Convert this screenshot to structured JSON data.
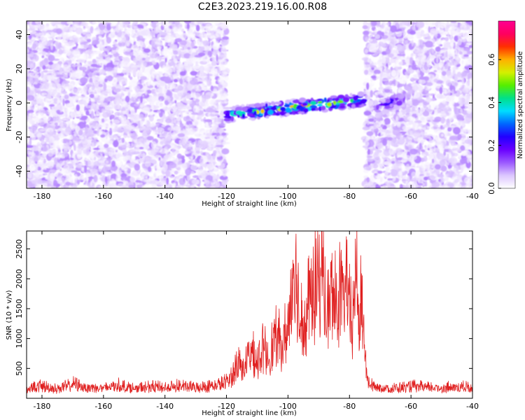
{
  "title": "C2E3.2023.219.16.00.R08",
  "chart_data": [
    {
      "type": "heatmap",
      "xlabel": "Height of straight line (km)",
      "ylabel": "Frequency (Hz)",
      "xlim": [
        -185,
        -40
      ],
      "ylim": [
        -50,
        48
      ],
      "xticks": [
        -180,
        -160,
        -140,
        -120,
        -100,
        -80,
        -60,
        -40
      ],
      "yticks": [
        -40,
        -20,
        0,
        20,
        40
      ],
      "colorbar": {
        "label": "Normalized spectral amplitude",
        "range": [
          0,
          0.78
        ],
        "ticks": [
          0.0,
          0.2,
          0.4,
          0.6
        ],
        "colors": [
          "#ffffff",
          "#dcc6ff",
          "#9b59ff",
          "#6a00ff",
          "#2200ff",
          "#0066ff",
          "#00ddff",
          "#00e08a",
          "#55ee00",
          "#d4f000",
          "#ffb000",
          "#ff3000",
          "#ff0060",
          "#ff0090"
        ]
      },
      "regions": [
        {
          "x": [
            -185,
            -120
          ],
          "y": [
            -50,
            48
          ],
          "amplitude": [
            0.0,
            0.1
          ],
          "description": "noise"
        },
        {
          "x": [
            -75,
            -40
          ],
          "y": [
            -50,
            48
          ],
          "amplitude": [
            0.0,
            0.1
          ],
          "description": "noise"
        },
        {
          "x": [
            -120,
            -75
          ],
          "y_center": [
            -7,
            2
          ],
          "y_halfwidth": 4,
          "amplitude": [
            0.05,
            0.78
          ],
          "description": "signal band"
        },
        {
          "x": [
            -71,
            -62
          ],
          "y_center": [
            -3,
            3
          ],
          "y_halfwidth": 4,
          "amplitude": [
            0.05,
            0.3
          ],
          "description": "weak echo"
        }
      ],
      "grid": false
    },
    {
      "type": "line",
      "xlabel": "Height of straight line (km)",
      "ylabel": "SNR (10 * v/v)",
      "xlim": [
        -185,
        -40
      ],
      "ylim": [
        0,
        2800
      ],
      "xticks": [
        -180,
        -160,
        -140,
        -120,
        -100,
        -80,
        -60,
        -40
      ],
      "yticks": [
        500,
        1000,
        1500,
        2000,
        2500
      ],
      "color": "#e02020",
      "x": [
        -185,
        -180,
        -175,
        -170,
        -165,
        -160,
        -155,
        -150,
        -145,
        -140,
        -135,
        -130,
        -125,
        -122,
        -120,
        -118,
        -116,
        -114,
        -112,
        -110,
        -108,
        -106,
        -104,
        -102,
        -100,
        -98,
        -97,
        -96,
        -95,
        -94,
        -93,
        -92,
        -91,
        -90,
        -89,
        -88,
        -87,
        -86,
        -85,
        -84,
        -83,
        -82,
        -81,
        -80,
        -79,
        -78,
        -77,
        -76,
        -75,
        -74,
        -72,
        -70,
        -65,
        -60,
        -55,
        -50,
        -45,
        -40
      ],
      "y": [
        180,
        220,
        170,
        260,
        200,
        190,
        240,
        180,
        210,
        200,
        230,
        190,
        220,
        250,
        300,
        420,
        700,
        550,
        850,
        650,
        900,
        800,
        1100,
        1000,
        1300,
        2400,
        1900,
        1500,
        1600,
        1300,
        2000,
        1700,
        2100,
        1900,
        2800,
        1700,
        1600,
        1800,
        1900,
        1800,
        1900,
        1700,
        2100,
        1600,
        1300,
        2450,
        1600,
        1700,
        900,
        300,
        220,
        200,
        180,
        220,
        200,
        190,
        210,
        200
      ],
      "grid": false
    }
  ]
}
